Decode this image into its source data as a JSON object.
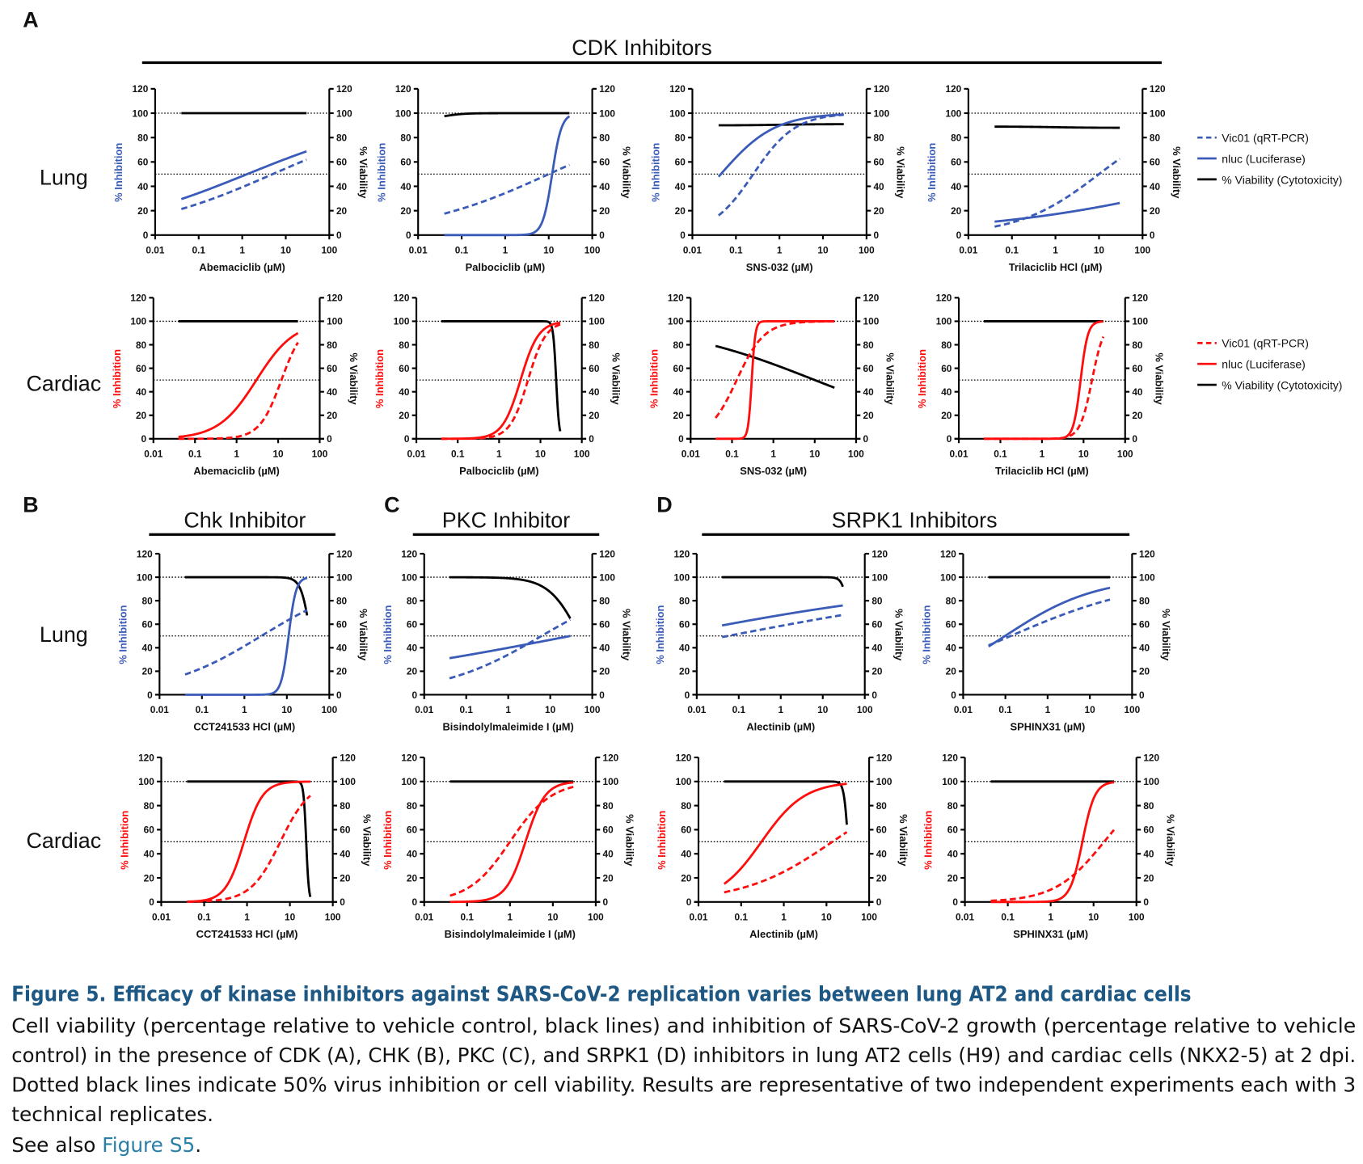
{
  "colors": {
    "lung": "#3a5bb8",
    "cardiac": "#ff0d0d",
    "viability": "#000000",
    "caption_title": "#1d5783",
    "link": "#2a7fa8"
  },
  "panel_letters": {
    "a": "A",
    "b": "B",
    "c": "C",
    "d": "D"
  },
  "group_titles": {
    "cdk": "CDK Inhibitors",
    "chk": "Chk Inhibitor",
    "pkc": "PKC Inhibitor",
    "srpk1": "SRPK1 Inhibitors"
  },
  "row_labels": {
    "lung_a": "Lung",
    "cardiac_a": "Cardiac",
    "lung_bd": "Lung",
    "cardiac_bd": "Cardiac"
  },
  "legends": {
    "lung": [
      "Vic01 (qRT-PCR)",
      "nluc (Luciferase)",
      "% Viability (Cytotoxicity)"
    ],
    "cardiac": [
      "Vic01 (qRT-PCR)",
      "nluc (Luciferase)",
      "% Viability (Cytotoxicity)"
    ]
  },
  "caption": {
    "title": "Figure 5.  Efficacy of kinase inhibitors against SARS-CoV-2 replication varies between lung AT2 and cardiac cells",
    "lines": [
      "Cell viability (percentage relative to vehicle control, black lines) and inhibition of SARS-CoV-2 growth (percentage relative to vehicle",
      "control) in the presence of CDK (A), CHK (B), PKC (C), and SRPK1 (D) inhibitors in lung AT2 cells (H9) and cardiac cells (NKX2-5) at 2 dpi.",
      "Dotted black lines indicate 50% virus inhibition or cell viability. Results are representative of two independent experiments each with 3",
      "technical replicates."
    ],
    "see_also_prefix": "See also ",
    "see_also_link": "Figure S5",
    "see_also_suffix": "."
  },
  "chart_data": {
    "type": "line",
    "x_scale": "log",
    "xlim": [
      0.01,
      100
    ],
    "ylim": [
      0,
      120
    ],
    "x_ticks": [
      "0.01",
      "0.1",
      "1",
      "10",
      "100"
    ],
    "y_ticks": [
      "0",
      "20",
      "40",
      "60",
      "80",
      "100",
      "120"
    ],
    "ylabel_left": "% Inhibition",
    "ylabel_right": "% Viability",
    "reference_lines": [
      50,
      100
    ],
    "curve_x_range": [
      0.04,
      30
    ],
    "model": "four-parameter logistic: y = bottom + (top - bottom) / (1 + (ec50/x)^hill)",
    "series_names": {
      "vic": "Vic01 (qRT-PCR)",
      "nluc": "nluc (Luciferase)",
      "via": "% Viability (Cytotoxicity)"
    },
    "panels": [
      {
        "cell": "lung",
        "xlabel": "Abemaciclib (µM)",
        "series": {
          "via": {
            "bottom": 100,
            "top": 100,
            "ec50": 1,
            "hill": 1
          },
          "nluc": {
            "bottom": 0,
            "top": 100,
            "ec50": 1.3,
            "hill": 0.25
          },
          "vic": {
            "bottom": 0,
            "top": 100,
            "ec50": 5,
            "hill": 0.27
          }
        }
      },
      {
        "cell": "lung",
        "xlabel": "Palbociclib (µM)",
        "series": {
          "via": {
            "bottom": 95,
            "top": 100,
            "ec50": 0.04,
            "hill": 2
          },
          "nluc": {
            "bottom": 0,
            "top": 100,
            "ec50": 12,
            "hill": 4
          },
          "vic": {
            "bottom": 0,
            "top": 100,
            "ec50": 10,
            "hill": 0.28
          }
        }
      },
      {
        "cell": "lung",
        "xlabel": "SNS-032 (µM)",
        "series": {
          "via": {
            "bottom": 90,
            "top": 91,
            "ec50": 1,
            "hill": 1
          },
          "nluc": {
            "bottom": 0,
            "top": 100,
            "ec50": 0.045,
            "hill": 0.7
          },
          "vic": {
            "bottom": 0,
            "top": 100,
            "ec50": 0.25,
            "hill": 0.9
          }
        }
      },
      {
        "cell": "lung",
        "xlabel": "Trilaciclib HCl (µM)",
        "series": {
          "via": {
            "bottom": 89,
            "top": 88,
            "ec50": 1,
            "hill": 1
          },
          "nluc": {
            "bottom": 0,
            "top": 100,
            "ec50": 18600,
            "hill": 0.16
          },
          "vic": {
            "bottom": 0,
            "top": 100,
            "ec50": 10,
            "hill": 0.47
          }
        }
      },
      {
        "cell": "cardiac",
        "xlabel": "Abemaciclib (µM)",
        "series": {
          "via": {
            "bottom": 100,
            "top": 100,
            "ec50": 1,
            "hill": 1
          },
          "nluc": {
            "bottom": 0,
            "top": 100,
            "ec50": 3,
            "hill": 0.95
          },
          "vic": {
            "bottom": 0,
            "top": 100,
            "ec50": 12,
            "hill": 1.65
          }
        }
      },
      {
        "cell": "cardiac",
        "xlabel": "Palbociclib (µM)",
        "series": {
          "via": {
            "bottom": 100,
            "top": 0,
            "ec50": 24,
            "hill": 12
          },
          "nluc": {
            "bottom": 0,
            "top": 100,
            "ec50": 3.3,
            "hill": 2
          },
          "vic": {
            "bottom": 0,
            "top": 100,
            "ec50": 5,
            "hill": 2
          }
        }
      },
      {
        "cell": "cardiac",
        "xlabel": "SNS-032 (µM)",
        "series": {
          "via": {
            "bottom": 100,
            "top": 0,
            "ec50": 10,
            "hill": 0.24
          },
          "nluc": {
            "bottom": 0,
            "top": 100,
            "ec50": 0.3,
            "hill": 10
          },
          "vic": {
            "bottom": 0,
            "top": 100,
            "ec50": 0.13,
            "hill": 1.3
          }
        }
      },
      {
        "cell": "cardiac",
        "xlabel": "Trilaciclib HCl (µM)",
        "series": {
          "via": {
            "bottom": 100,
            "top": 100,
            "ec50": 1,
            "hill": 1
          },
          "nluc": {
            "bottom": 0,
            "top": 100,
            "ec50": 8.5,
            "hill": 5
          },
          "vic": {
            "bottom": 0,
            "top": 100,
            "ec50": 16,
            "hill": 3
          }
        }
      },
      {
        "cell": "lung",
        "xlabel": "CCT241533 HCl (µM)",
        "series": {
          "via": {
            "bottom": 100,
            "top": 0,
            "ec50": 36,
            "hill": 4
          },
          "nluc": {
            "bottom": 0,
            "top": 100,
            "ec50": 11,
            "hill": 5
          },
          "vic": {
            "bottom": 0,
            "top": 100,
            "ec50": 2.5,
            "hill": 0.38
          }
        }
      },
      {
        "cell": "lung",
        "xlabel": "Bisindolylmaleimide I (µM)",
        "series": {
          "via": {
            "bottom": 100,
            "top": 0,
            "ec50": 50,
            "hill": 1.2
          },
          "nluc": {
            "bottom": 0,
            "top": 100,
            "ec50": 30,
            "hill": 0.12
          },
          "vic": {
            "bottom": 0,
            "top": 100,
            "ec50": 6.2,
            "hill": 0.36
          }
        }
      },
      {
        "cell": "lung",
        "xlabel": "Alectinib (µM)",
        "series": {
          "via": {
            "bottom": 100,
            "top": 0,
            "ec50": 45,
            "hill": 6
          },
          "nluc": {
            "bottom": 0,
            "top": 100,
            "ec50": 0.0019,
            "hill": 0.119
          },
          "vic": {
            "bottom": 0,
            "top": 100,
            "ec50": 0.055,
            "hill": 0.119
          }
        }
      },
      {
        "cell": "lung",
        "xlabel": "SPHINX31 (µM)",
        "series": {
          "via": {
            "bottom": 100,
            "top": 100,
            "ec50": 1,
            "hill": 1
          },
          "nluc": {
            "bottom": 0,
            "top": 100,
            "ec50": 0.098,
            "hill": 0.404
          },
          "vic": {
            "bottom": 0,
            "top": 100,
            "ec50": 0.133,
            "hill": 0.267
          }
        }
      },
      {
        "cell": "cardiac",
        "xlabel": "CCT241533 HCl (µM)",
        "series": {
          "via": {
            "bottom": 100,
            "top": 0,
            "ec50": 24,
            "hill": 14
          },
          "nluc": {
            "bottom": 0,
            "top": 100,
            "ec50": 0.85,
            "hill": 2
          },
          "vic": {
            "bottom": 0,
            "top": 100,
            "ec50": 6,
            "hill": 1.25
          }
        }
      },
      {
        "cell": "cardiac",
        "xlabel": "Bisindolylmaleimide I (µM)",
        "series": {
          "via": {
            "bottom": 100,
            "top": 100,
            "ec50": 1,
            "hill": 1
          },
          "nluc": {
            "bottom": 0,
            "top": 100,
            "ec50": 2.3,
            "hill": 1.9
          },
          "vic": {
            "bottom": 0,
            "top": 100,
            "ec50": 1,
            "hill": 0.9
          }
        }
      },
      {
        "cell": "cardiac",
        "xlabel": "Alectinib (µM)",
        "series": {
          "via": {
            "bottom": 100,
            "top": 0,
            "ec50": 32,
            "hill": 9
          },
          "nluc": {
            "bottom": 0,
            "top": 100,
            "ec50": 0.3,
            "hill": 0.86
          },
          "vic": {
            "bottom": 0,
            "top": 100,
            "ec50": 13.8,
            "hill": 0.417
          }
        }
      },
      {
        "cell": "cardiac",
        "xlabel": "SPHINX31 (µM)",
        "series": {
          "via": {
            "bottom": 100,
            "top": 100,
            "ec50": 1,
            "hill": 1
          },
          "nluc": {
            "bottom": 0,
            "top": 100,
            "ec50": 5.5,
            "hill": 3
          },
          "vic": {
            "bottom": 0,
            "top": 100,
            "ec50": 17.7,
            "hill": 0.756
          }
        }
      }
    ]
  }
}
